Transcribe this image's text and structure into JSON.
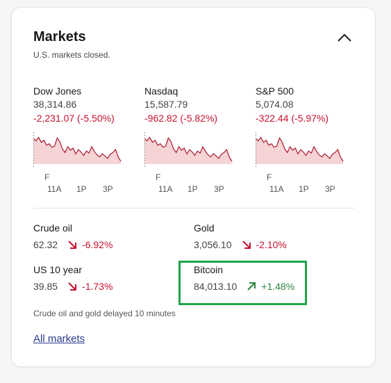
{
  "widget": {
    "title": "Markets",
    "subtitle": "U.S. markets closed.",
    "collapse_icon": "chevron-up-icon"
  },
  "indices": [
    {
      "name": "Dow Jones",
      "value": "38,314.86",
      "change": "-2,231.07 (-5.50%)"
    },
    {
      "name": "Nasdaq",
      "value": "15,587.79",
      "change": "-962.82 (-5.82%)"
    },
    {
      "name": "S&P 500",
      "value": "5,074.08",
      "change": "-322.44 (-5.97%)"
    }
  ],
  "sparkline_ticks": {
    "day": "F",
    "times": [
      "11A",
      "1P",
      "3P"
    ]
  },
  "sparkline_shape": [
    0.22,
    0.3,
    0.18,
    0.35,
    0.28,
    0.45,
    0.4,
    0.52,
    0.48,
    0.2,
    0.33,
    0.58,
    0.7,
    0.5,
    0.62,
    0.55,
    0.75,
    0.6,
    0.68,
    0.8,
    0.65,
    0.72,
    0.5,
    0.66,
    0.78,
    0.85,
    0.74,
    0.82,
    0.9,
    0.76,
    0.7,
    0.6,
    0.86,
    1.0
  ],
  "commodities": [
    {
      "name": "Crude oil",
      "value": "62.32",
      "change": "-6.92%",
      "direction": "down"
    },
    {
      "name": "Gold",
      "value": "3,056.10",
      "change": "-2.10%",
      "direction": "down"
    },
    {
      "name": "US 10 year",
      "value": "39.85",
      "change": "-1.73%",
      "direction": "down"
    },
    {
      "name": "Bitcoin",
      "value": "84,013.10",
      "change": "+1.48%",
      "direction": "up"
    }
  ],
  "footnote": "Crude oil and gold delayed 10 minutes",
  "all_markets_link": "All markets",
  "colors": {
    "negative": "#c8102e",
    "positive": "#2e8540",
    "chart_line": "#a8192e",
    "chart_fill": "#f6d3d5",
    "highlight": "#1fa44a",
    "link": "#2a3a8f"
  }
}
